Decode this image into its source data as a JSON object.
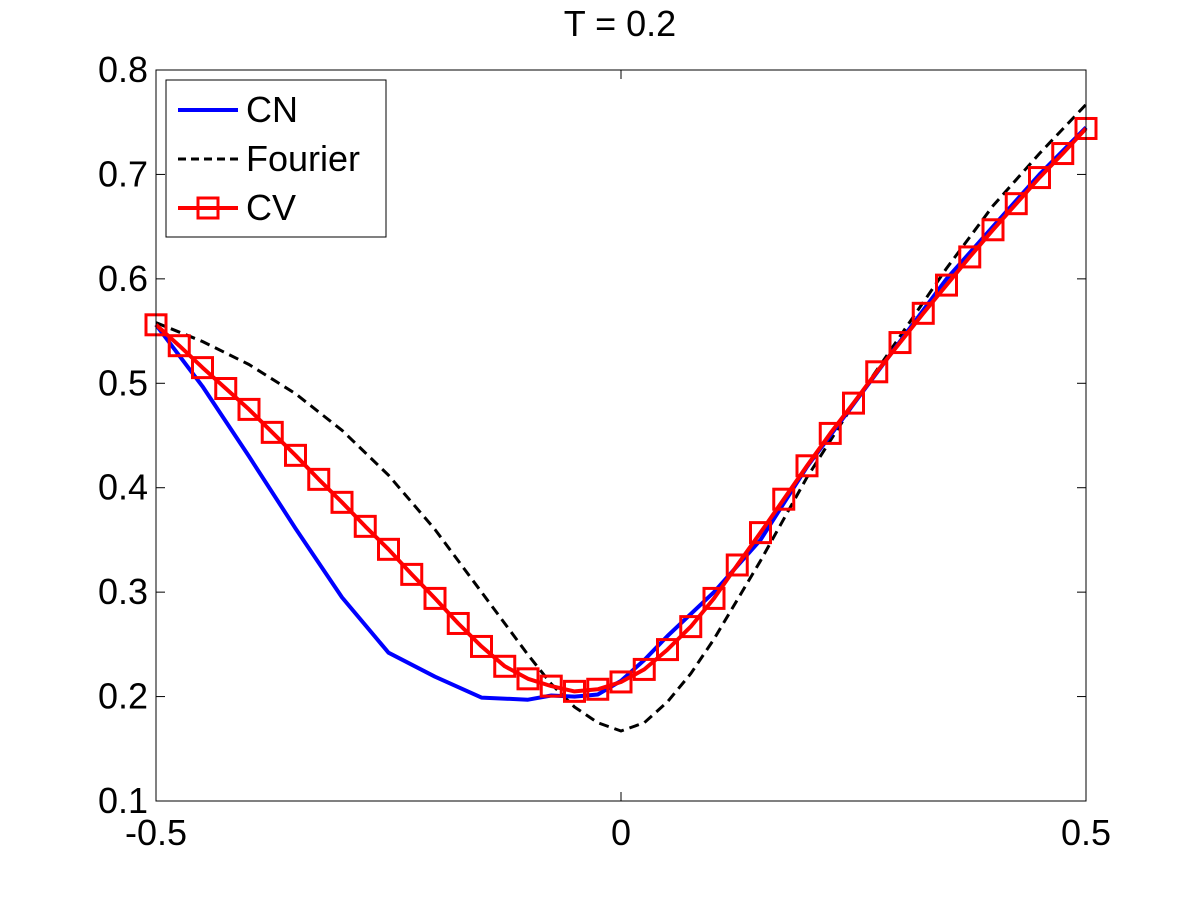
{
  "chart_data": {
    "type": "line",
    "title": "T = 0.2",
    "xlabel": "",
    "ylabel": "",
    "xlim": [
      -0.5,
      0.5
    ],
    "ylim": [
      0.1,
      0.8
    ],
    "xticks": [
      -0.5,
      0,
      0.5
    ],
    "xtick_labels": [
      "-0.5",
      "0",
      "0.5"
    ],
    "yticks": [
      0.1,
      0.2,
      0.3,
      0.4,
      0.5,
      0.6,
      0.7,
      0.8
    ],
    "ytick_labels": [
      "0.1",
      "0.2",
      "0.3",
      "0.4",
      "0.5",
      "0.6",
      "0.7",
      "0.8"
    ],
    "grid": false,
    "legend_position": "top-left",
    "series": [
      {
        "name": "CN",
        "color": "#0000ff",
        "style": "solid",
        "marker": "none",
        "x": [
          -0.5,
          -0.45,
          -0.4,
          -0.35,
          -0.3,
          -0.25,
          -0.2,
          -0.15,
          -0.1,
          -0.075,
          -0.05,
          -0.025,
          0,
          0.025,
          0.05,
          0.1,
          0.15,
          0.2,
          0.25,
          0.3,
          0.35,
          0.4,
          0.45,
          0.5
        ],
        "y": [
          0.556,
          0.497,
          0.43,
          0.361,
          0.295,
          0.242,
          0.219,
          0.199,
          0.197,
          0.201,
          0.2,
          0.202,
          0.215,
          0.235,
          0.258,
          0.3,
          0.35,
          0.42,
          0.48,
          0.54,
          0.6,
          0.65,
          0.7,
          0.745
        ]
      },
      {
        "name": "Fourier",
        "color": "#000000",
        "style": "dashed",
        "marker": "none",
        "x": [
          -0.5,
          -0.45,
          -0.4,
          -0.35,
          -0.3,
          -0.25,
          -0.2,
          -0.15,
          -0.1,
          -0.075,
          -0.05,
          -0.025,
          0,
          0.025,
          0.05,
          0.075,
          0.1,
          0.15,
          0.2,
          0.25,
          0.3,
          0.35,
          0.4,
          0.45,
          0.5
        ],
        "y": [
          0.558,
          0.54,
          0.518,
          0.49,
          0.455,
          0.412,
          0.36,
          0.3,
          0.24,
          0.212,
          0.19,
          0.175,
          0.167,
          0.175,
          0.195,
          0.222,
          0.255,
          0.33,
          0.41,
          0.48,
          0.545,
          0.61,
          0.67,
          0.72,
          0.767
        ]
      },
      {
        "name": "CV",
        "color": "#ff0000",
        "style": "solid",
        "marker": "square",
        "x": [
          -0.5,
          -0.475,
          -0.45,
          -0.425,
          -0.4,
          -0.375,
          -0.35,
          -0.325,
          -0.3,
          -0.275,
          -0.25,
          -0.225,
          -0.2,
          -0.175,
          -0.15,
          -0.125,
          -0.1,
          -0.075,
          -0.05,
          -0.025,
          0,
          0.025,
          0.05,
          0.075,
          0.1,
          0.125,
          0.15,
          0.175,
          0.2,
          0.225,
          0.25,
          0.275,
          0.3,
          0.325,
          0.35,
          0.375,
          0.4,
          0.425,
          0.45,
          0.475,
          0.5
        ],
        "y": [
          0.556,
          0.536,
          0.515,
          0.495,
          0.475,
          0.453,
          0.431,
          0.408,
          0.386,
          0.363,
          0.341,
          0.317,
          0.294,
          0.27,
          0.248,
          0.229,
          0.217,
          0.21,
          0.205,
          0.207,
          0.214,
          0.226,
          0.245,
          0.267,
          0.294,
          0.326,
          0.357,
          0.389,
          0.421,
          0.452,
          0.481,
          0.511,
          0.539,
          0.567,
          0.594,
          0.621,
          0.647,
          0.672,
          0.697,
          0.72,
          0.744
        ]
      }
    ]
  }
}
